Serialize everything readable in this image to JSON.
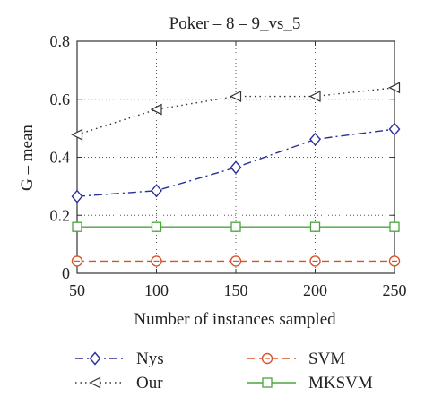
{
  "chart_data": {
    "type": "line",
    "title": "Poker – 8 – 9_vs_5",
    "xlabel": "Number of instances sampled",
    "ylabel": "G – mean",
    "x": [
      50,
      100,
      150,
      200,
      250
    ],
    "xlim": [
      50,
      250
    ],
    "ylim": [
      0,
      0.8
    ],
    "xticks": [
      "50",
      "100",
      "150",
      "200",
      "250"
    ],
    "yticks": [
      "0",
      "0.2",
      "0.4",
      "0.6",
      "0.8"
    ],
    "grid": true,
    "legend_position": "bottom",
    "series": [
      {
        "name": "Nys",
        "values": [
          0.265,
          0.285,
          0.365,
          0.462,
          0.497
        ],
        "color": "#2b2f9a",
        "dash": "dash-dot",
        "marker": "diamond"
      },
      {
        "name": "Our",
        "values": [
          0.478,
          0.565,
          0.61,
          0.61,
          0.64
        ],
        "color": "#333333",
        "dash": "dotted",
        "marker": "triangle-left"
      },
      {
        "name": "SVM",
        "values": [
          0.042,
          0.042,
          0.042,
          0.042,
          0.042
        ],
        "color": "#d9532a",
        "dash": "dashed",
        "marker": "circle"
      },
      {
        "name": "MKSVM",
        "values": [
          0.16,
          0.16,
          0.16,
          0.16,
          0.16
        ],
        "color": "#4aa63c",
        "dash": "solid",
        "marker": "square"
      }
    ]
  }
}
